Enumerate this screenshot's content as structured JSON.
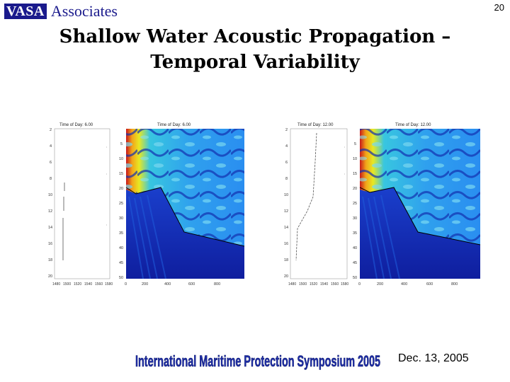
{
  "header": {
    "logo_brand": "VASA",
    "logo_text": "Associates",
    "slide_number": "20"
  },
  "title": {
    "line1": "Shallow Water Acoustic Propagation –",
    "line2": "Temporal Variability"
  },
  "panels": [
    {
      "profile_title": "Time of Day:  6.00",
      "field_title": "Time of Day:  6.00"
    },
    {
      "profile_title": "Time of Day:  12.00",
      "field_title": "Time of Day:  12.00"
    }
  ],
  "profile_axis": {
    "y_ticks": [
      "2",
      "4",
      "6",
      "8",
      "10",
      "12",
      "14",
      "16",
      "18",
      "20"
    ],
    "x_ticks": [
      "1480",
      "1500",
      "1520",
      "1540",
      "1560",
      "1580"
    ]
  },
  "field_axis": {
    "y_ticks": [
      "5",
      "10",
      "15",
      "20",
      "25",
      "30",
      "35",
      "40",
      "45",
      "50"
    ],
    "x_ticks": [
      "0",
      "200",
      "400",
      "600",
      "800"
    ]
  },
  "footer": {
    "banner_text": "International Maritime Protection Symposium 2005",
    "date": "Dec. 13, 2005"
  },
  "colors": {
    "logo_blue": "#1a1a8c",
    "banner_blue": "#1f2fa8"
  }
}
